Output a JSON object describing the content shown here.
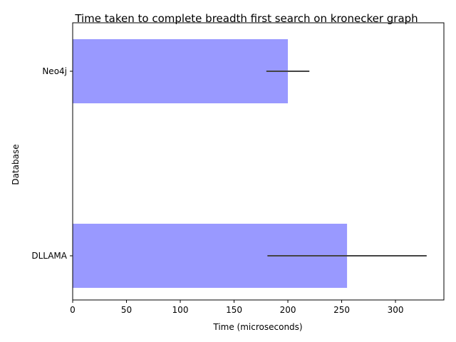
{
  "chart_data": {
    "type": "bar",
    "orientation": "horizontal",
    "title": "Time taken to complete breadth first search on kronecker graph",
    "xlabel": "Time (microseconds)",
    "ylabel": "Database",
    "categories": [
      "Neo4j",
      "DLLAMA"
    ],
    "values": [
      200,
      255
    ],
    "error_bars": [
      {
        "category": "Neo4j",
        "low": 180,
        "high": 220
      },
      {
        "category": "DLLAMA",
        "low": 181,
        "high": 329
      }
    ],
    "xlim": [
      0,
      345
    ],
    "xticks": [
      0,
      50,
      100,
      150,
      200,
      250,
      300
    ],
    "grid": false,
    "bar_color": "#9999ff",
    "error_color": "#444444"
  }
}
